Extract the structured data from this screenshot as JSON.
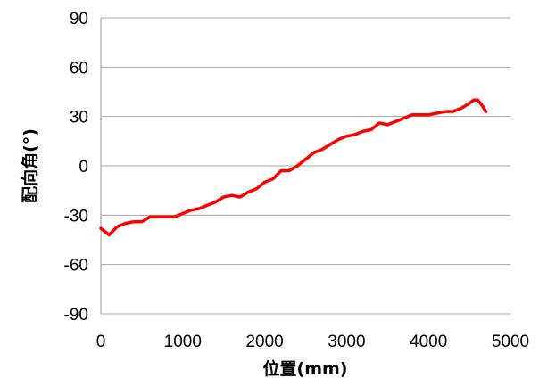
{
  "chart_data": {
    "type": "line",
    "title": "",
    "xlabel": "位置(mm)",
    "ylabel": "配向角(°)",
    "xlim": [
      0,
      5000
    ],
    "ylim": [
      -90,
      90
    ],
    "x_ticks": [
      "0",
      "1000",
      "2000",
      "3000",
      "4000",
      "5000"
    ],
    "y_ticks": [
      "-90",
      "-60",
      "-30",
      "0",
      "30",
      "60",
      "90"
    ],
    "grid": "horizontal",
    "legend": "none",
    "series": [
      {
        "color": "#ff0000",
        "x": [
          0,
          100,
          200,
          300,
          400,
          500,
          600,
          700,
          800,
          900,
          1000,
          1100,
          1200,
          1300,
          1400,
          1500,
          1600,
          1700,
          1800,
          1900,
          2000,
          2100,
          2200,
          2300,
          2400,
          2500,
          2600,
          2700,
          2800,
          2900,
          3000,
          3100,
          3200,
          3300,
          3400,
          3500,
          3600,
          3700,
          3800,
          3900,
          4000,
          4100,
          4200,
          4300,
          4400,
          4500,
          4550,
          4600,
          4650,
          4700
        ],
        "y": [
          -38,
          -42,
          -37,
          -35,
          -34,
          -34,
          -31,
          -31,
          -31,
          -31,
          -29,
          -27,
          -26,
          -24,
          -22,
          -19,
          -18,
          -19,
          -16,
          -14,
          -10,
          -8,
          -3,
          -3,
          0,
          4,
          8,
          10,
          13,
          16,
          18,
          19,
          21,
          22,
          26,
          25,
          27,
          29,
          31,
          31,
          31,
          32,
          33,
          33,
          35,
          38,
          40,
          40,
          37,
          33
        ]
      }
    ]
  }
}
